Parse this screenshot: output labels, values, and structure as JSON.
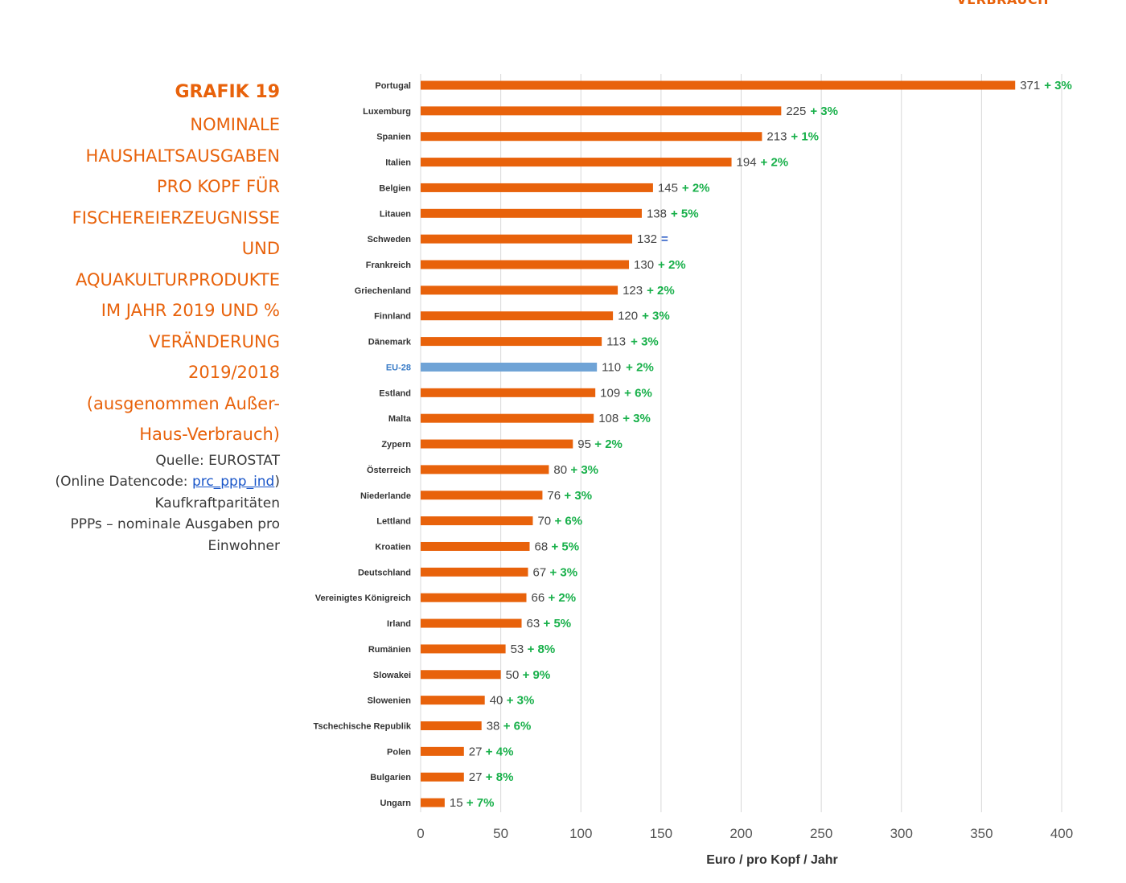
{
  "header_fragment": "VERBRAUCH",
  "panel": {
    "grafik_label": "GRAFIK 19",
    "title_lines": [
      "NOMINALE",
      "HAUSHALTSAUSGABEN",
      "PRO KOPF FÜR",
      "FISCHEREIERZEUGNISSE",
      "UND",
      "AQUAKULTURPRODUKTE",
      "IM JAHR 2019 UND %",
      "VERÄNDERUNG",
      "2019/2018",
      "(ausgenommen Außer-",
      "Haus-Verbrauch)"
    ],
    "source_line": "Quelle: EUROSTAT",
    "datacode_prefix": "(Online Datencode: ",
    "datacode_link": "prc_ppp_ind",
    "datacode_suffix": ")",
    "extra_lines": [
      "Kaufkraftparitäten",
      "PPPs – nominale Ausgaben pro",
      "Einwohner"
    ]
  },
  "colors": {
    "bar": "#e8620b",
    "bar_highlight": "#6fa3d6",
    "change_positive": "#18b04a",
    "change_neutral": "#2f5fc7",
    "highlight_label": "#3a7cc7",
    "grid": "#d8d8d8",
    "title": "#e8620b"
  },
  "chart_data": {
    "type": "bar",
    "orientation": "horizontal",
    "categories": [
      "Portugal",
      "Luxemburg",
      "Spanien",
      "Italien",
      "Belgien",
      "Litauen",
      "Schweden",
      "Frankreich",
      "Griechenland",
      "Finnland",
      "Dänemark",
      "EU-28",
      "Estland",
      "Malta",
      "Zypern",
      "Österreich",
      "Niederlande",
      "Lettland",
      "Kroatien",
      "Deutschland",
      "Vereinigtes Königreich",
      "Irland",
      "Rumänien",
      "Slowakei",
      "Slowenien",
      "Tschechische Republik",
      "Polen",
      "Bulgarien",
      "Ungarn"
    ],
    "values": [
      371,
      225,
      213,
      194,
      145,
      138,
      132,
      130,
      123,
      120,
      113,
      110,
      109,
      108,
      95,
      80,
      76,
      70,
      68,
      67,
      66,
      63,
      53,
      50,
      40,
      38,
      27,
      27,
      15
    ],
    "change_labels": [
      "+ 3%",
      "+ 3%",
      "+ 1%",
      "+ 2%",
      "+ 2%",
      "+ 5%",
      "=",
      "+ 2%",
      "+ 2%",
      "+ 3%",
      "+ 3%",
      "+ 2%",
      "+ 6%",
      "+ 3%",
      "+ 2%",
      "+ 3%",
      "+ 3%",
      "+ 6%",
      "+ 5%",
      "+ 3%",
      "+ 2%",
      "+ 5%",
      "+ 8%",
      "+ 9%",
      "+ 3%",
      "+ 6%",
      "+ 4%",
      "+ 8%",
      "+ 7%"
    ],
    "highlight_category": "EU-28",
    "x_ticks": [
      0,
      50,
      100,
      150,
      200,
      250,
      300,
      350,
      400
    ],
    "xlim": [
      0,
      400
    ],
    "xlabel": "Euro / pro Kopf / Jahr",
    "grid": "vertical"
  }
}
